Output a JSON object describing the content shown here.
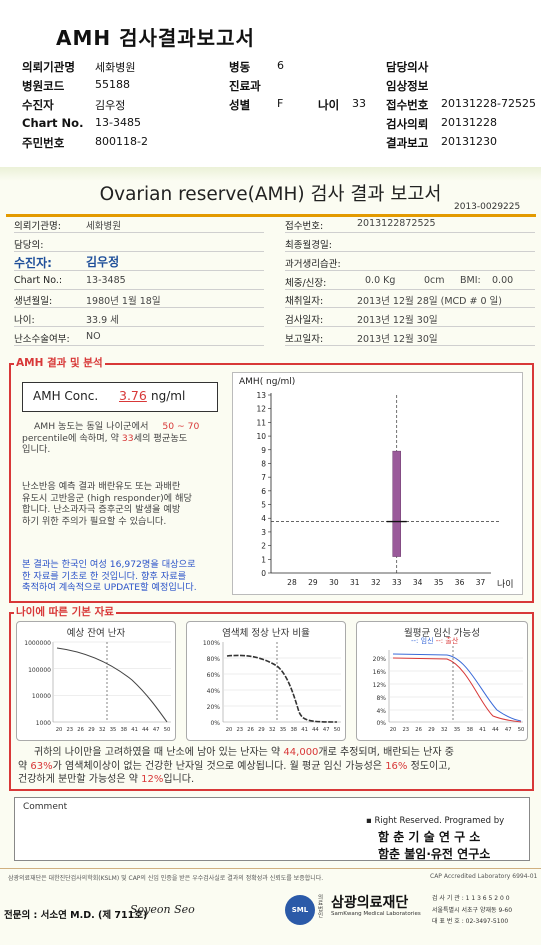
{
  "header": {
    "title": "AMH 검사결과보고서",
    "rows": [
      {
        "l1": "의뢰기관명",
        "v1": "세화병원",
        "l2": "병동",
        "v2": "6",
        "l3": "",
        "v3": "",
        "l4": "담당의사",
        "v4": ""
      },
      {
        "l1": "병원코드",
        "v1": "55188",
        "l2": "진료과",
        "v2": "",
        "l3": "",
        "v3": "",
        "l4": "임상정보",
        "v4": ""
      },
      {
        "l1": "수진자",
        "v1": "김우정",
        "l2": "성별",
        "v2": "F",
        "l3": "나이",
        "v3": "33",
        "l4": "접수번호",
        "v4": "20131228-72525"
      },
      {
        "l1": "Chart No.",
        "v1": "13-3485",
        "l2": "",
        "v2": "",
        "l3": "",
        "v3": "",
        "l4": "검사의뢰",
        "v4": "20131228"
      },
      {
        "l1": "주민번호",
        "v1": "800118-2",
        "l2": "",
        "v2": "",
        "l3": "",
        "v3": "",
        "l4": "결과보고",
        "v4": "20131230"
      }
    ]
  },
  "report": {
    "title": "Ovarian reserve(AMH) 검사 결과 보고서",
    "report_id": "2013-0029225",
    "left": {
      "inst_label": "의뢰기관명:",
      "inst_value": "세화병원",
      "doctor_label": "담당의:",
      "patient_label": "수진자:",
      "patient_value": "김우정",
      "chart_label": "Chart No.:",
      "chart_value": "13-3485",
      "dob_label": "생년월일:",
      "dob_value": "1980년 1월 18일",
      "age_label": "나이:",
      "age_value": "33.9 세",
      "surgery_label": "난소수술여부:",
      "surgery_value": "NO"
    },
    "right": {
      "receipt_label": "접수번호:",
      "receipt_value": "2013122872525",
      "final_label": "최종월경일:",
      "history_label": "과거생리습관:",
      "body_label": "체중/신장:",
      "weight": "0.0 Kg",
      "height": "0cm",
      "bmi_label": "BMI:",
      "bmi": "0.00",
      "collect_label": "채취일자:",
      "collect_value": "2013년 12월 28일 (MCD # 0 일)",
      "test_label": "검사일자:",
      "test_value": "2013년 12월 30일",
      "report_label": "보고일자:",
      "report_value": "2013년 12월 30일"
    }
  },
  "amh": {
    "section_title": "AMH 결과 및 분석",
    "conc_label": "AMH Conc.",
    "conc_value": "3.76",
    "conc_unit": "ng/ml",
    "p1_a": "AMH 농도는 동일 나이군에서",
    "p1_range": "50 ~ 70",
    "p1_b": "percentile에 속하며, 약",
    "p1_age": "33",
    "p1_c": "세의 평균농도",
    "p1_d": "입니다.",
    "p2": [
      "난소반응 예측 결과 배란유도 또는 과배란",
      "유도시 고반응군 (high responder)에 해당",
      "합니다. 난소과자극 증후군의 발생을 예방",
      "하기 위한 주의가 필요할 수 있습니다."
    ],
    "p3": [
      "본 결과는 한국인 여성 16,972명을 대상으로",
      "한 자료를 기초로 한 것입니다. 향후 자료를",
      "축적하여 계속적으로 UPDATE할 예정입니다."
    ]
  },
  "chart_data": {
    "type": "box",
    "ylabel": "AMH( ng/ml)",
    "xlabel": "나이",
    "x_ticks": [
      28,
      29,
      30,
      31,
      32,
      33,
      34,
      35,
      36,
      37
    ],
    "y_ticks": [
      0,
      1,
      2,
      3,
      4,
      5,
      6,
      7,
      8,
      9,
      10,
      11,
      12,
      13
    ],
    "xlim": [
      27,
      37.5
    ],
    "ylim": [
      0,
      13
    ],
    "box": {
      "age": 33,
      "low": 1.2,
      "high": 8.9
    },
    "patient": {
      "age": 33,
      "value": 3.76
    }
  },
  "basic": {
    "section_title": "나이에 따른 기본 자료",
    "panel1": {
      "title": "예상 잔여 난자",
      "y_ticks": [
        "1000000",
        "100000",
        "10000",
        "1000"
      ],
      "x_ticks": [
        "20",
        "23",
        "26",
        "29",
        "32",
        "35",
        "38",
        "41",
        "44",
        "47",
        "50"
      ]
    },
    "panel2": {
      "title": "염색체 정상 난자 비율",
      "y_ticks": [
        "100%",
        "80%",
        "60%",
        "40%",
        "20%",
        "0%"
      ],
      "x_ticks": [
        "20",
        "23",
        "26",
        "29",
        "32",
        "35",
        "38",
        "41",
        "44",
        "47",
        "50"
      ]
    },
    "panel3": {
      "title": "월평균 임신 가능성",
      "legend_1": "임신",
      "legend_2": "출산",
      "y_ticks": [
        "20%",
        "16%",
        "12%",
        "8%",
        "4%",
        "0%"
      ],
      "x_ticks": [
        "20",
        "23",
        "26",
        "29",
        "32",
        "35",
        "38",
        "41",
        "44",
        "47",
        "50"
      ]
    },
    "st_a": "귀하의 나이만을 고려하였을 때 난소에 남아 있는 난자는 약",
    "st_eggs": "44,000",
    "st_b": "개로 추정되며, 배란되는 난자 중",
    "st_c": "약",
    "st_pct": "63%",
    "st_d": "가 염색체이상이 없는 건강한 난자일 것으로 예상됩니다. 월 평균 임신 가능성은",
    "st_preg": "16%",
    "st_e": "정도이고,",
    "st_f": "건강하게 분만할 가능성은 약",
    "st_birth": "12%",
    "st_g": "입니다."
  },
  "comment": {
    "label": "Comment"
  },
  "rights": {
    "line1": "▪ Right Reserved. Programed by",
    "line2": "함 춘 기 술 연 구 소",
    "line3": "함춘 불임·유전 연구소"
  },
  "footer": {
    "disclaimer": "삼광의료재단은 대한진단검사의학회(KSLM) 및 CAP의 신임 인증을 받은 우수검사실로 결과의 정확성과 신뢰도를 보증합니다.",
    "cap": "CAP Accredited Laboratory 6994-01",
    "signer": "전문의 : 서소연 M.D. (제 711호)",
    "signature": "Soyeon Seo",
    "org_prefix": "의료법인",
    "org_name": "삼광의료재단",
    "org_en": "SamKwang Medical Laboratories",
    "tel": "검 사 기 관 : 1 1 3 6 5 2 0 0",
    "addr": "서울특별시 서초구 양재동 9-60",
    "phone": "대 표 번 호 : 02-3497-5100"
  }
}
